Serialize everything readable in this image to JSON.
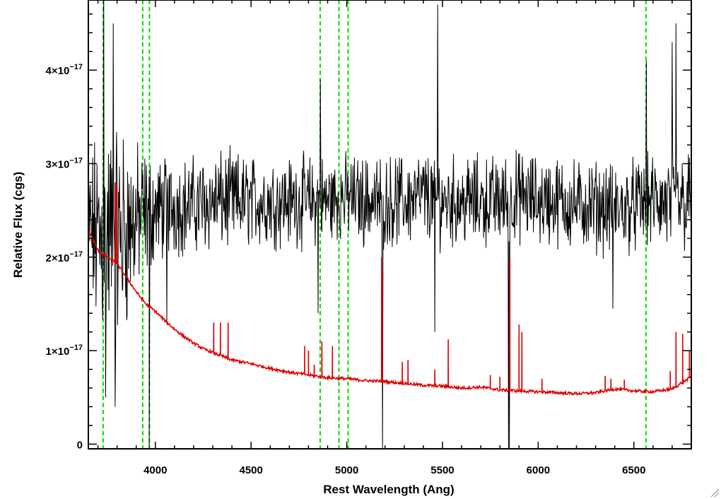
{
  "chart_data": {
    "type": "line",
    "xlabel": "Rest Wavelength (Ang)",
    "ylabel": "Relative Flux (cgs)",
    "xlim": [
      3650,
      6800
    ],
    "ylim": [
      -0.05,
      4.75
    ],
    "y_scale_label": "×10⁻¹⁷",
    "x_ticks": [
      {
        "value": 4000,
        "label": "4000"
      },
      {
        "value": 4500,
        "label": "4500"
      },
      {
        "value": 5000,
        "label": "5000"
      },
      {
        "value": 5500,
        "label": "5500"
      },
      {
        "value": 6000,
        "label": "6000"
      },
      {
        "value": 6500,
        "label": "6500"
      }
    ],
    "y_ticks": [
      {
        "value": 0,
        "label": "0"
      },
      {
        "value": 1,
        "label": "1×10⁻¹⁷"
      },
      {
        "value": 2,
        "label": "2×10⁻¹⁷"
      },
      {
        "value": 3,
        "label": "3×10⁻¹⁷"
      },
      {
        "value": 4,
        "label": "4×10⁻¹⁷"
      }
    ],
    "colors": {
      "spectrum": "#000000",
      "model": "#e00000",
      "lines": "#00dd00"
    },
    "series": [
      {
        "style": "noisy-spectrum",
        "color": "#000000",
        "x": [
          3650,
          3700,
          3750,
          3800,
          3850,
          3900,
          3950,
          4000,
          4100,
          4200,
          4300,
          4400,
          4500,
          4600,
          4700,
          4800,
          4900,
          5000,
          5100,
          5200,
          5300,
          5400,
          5500,
          5600,
          5700,
          5800,
          5900,
          6000,
          6100,
          6200,
          6300,
          6400,
          6500,
          6600,
          6700,
          6800
        ],
        "y": [
          2.3,
          2.2,
          2.2,
          2.2,
          2.3,
          2.4,
          2.45,
          2.5,
          2.55,
          2.55,
          2.6,
          2.6,
          2.6,
          2.6,
          2.6,
          2.6,
          2.6,
          2.65,
          2.6,
          2.6,
          2.6,
          2.65,
          2.6,
          2.6,
          2.6,
          2.6,
          2.65,
          2.6,
          2.6,
          2.55,
          2.55,
          2.5,
          2.55,
          2.6,
          2.55,
          2.6
        ],
        "amp": [
          0.9,
          1.5,
          1.6,
          1.6,
          1.3,
          1.0,
          0.9,
          0.7,
          0.65,
          0.65,
          0.65,
          0.65,
          0.6,
          0.6,
          0.6,
          0.6,
          0.6,
          0.55,
          0.6,
          0.6,
          0.6,
          0.6,
          0.6,
          0.6,
          0.6,
          0.6,
          0.6,
          0.6,
          0.6,
          0.6,
          0.6,
          0.6,
          0.6,
          0.6,
          0.7,
          0.7
        ],
        "spikes": [
          {
            "x": 3730,
            "y": 5.0
          },
          {
            "x": 3740,
            "y": 0.5
          },
          {
            "x": 3780,
            "y": 4.5
          },
          {
            "x": 3790,
            "y": 0.4
          },
          {
            "x": 3968,
            "y": -0.05
          },
          {
            "x": 4060,
            "y": 1.3
          },
          {
            "x": 4850,
            "y": 1.4
          },
          {
            "x": 4862,
            "y": 3.9
          },
          {
            "x": 5184,
            "y": 1.9
          },
          {
            "x": 5187,
            "y": -0.05
          },
          {
            "x": 5460,
            "y": 1.2
          },
          {
            "x": 5475,
            "y": 4.7
          },
          {
            "x": 5845,
            "y": -0.05
          },
          {
            "x": 5850,
            "y": -0.05
          },
          {
            "x": 6390,
            "y": 1.45
          },
          {
            "x": 6565,
            "y": 4.1
          },
          {
            "x": 6700,
            "y": 4.3
          },
          {
            "x": 6720,
            "y": 4.5
          }
        ]
      },
      {
        "style": "smooth-model",
        "color": "#e00000",
        "x": [
          3650,
          3700,
          3750,
          3800,
          3850,
          3900,
          3950,
          4000,
          4050,
          4100,
          4150,
          4200,
          4250,
          4300,
          4400,
          4500,
          4600,
          4700,
          4800,
          4900,
          5000,
          5100,
          5200,
          5300,
          5400,
          5500,
          5600,
          5700,
          5800,
          5900,
          6000,
          6100,
          6200,
          6300,
          6400,
          6500,
          6600,
          6700,
          6800
        ],
        "y": [
          2.3,
          2.07,
          2.0,
          1.93,
          1.78,
          1.63,
          1.5,
          1.42,
          1.32,
          1.23,
          1.15,
          1.08,
          1.02,
          0.98,
          0.9,
          0.86,
          0.81,
          0.77,
          0.74,
          0.71,
          0.7,
          0.68,
          0.67,
          0.65,
          0.63,
          0.62,
          0.6,
          0.61,
          0.58,
          0.57,
          0.56,
          0.55,
          0.54,
          0.55,
          0.59,
          0.57,
          0.56,
          0.59,
          0.72
        ],
        "lines": [
          {
            "x": 3790,
            "h": 2.8
          },
          {
            "x": 3800,
            "h": 2.75
          },
          {
            "x": 4305,
            "h": 1.3
          },
          {
            "x": 4340,
            "h": 1.3
          },
          {
            "x": 4380,
            "h": 1.3
          },
          {
            "x": 4780,
            "h": 1.05
          },
          {
            "x": 4800,
            "h": 1.0
          },
          {
            "x": 4830,
            "h": 0.85
          },
          {
            "x": 4870,
            "h": 1.1
          },
          {
            "x": 4925,
            "h": 1.05
          },
          {
            "x": 5182,
            "h": 2.0
          },
          {
            "x": 5185,
            "h": 1.85
          },
          {
            "x": 5290,
            "h": 0.88
          },
          {
            "x": 5320,
            "h": 0.9
          },
          {
            "x": 5460,
            "h": 0.8
          },
          {
            "x": 5530,
            "h": 1.12
          },
          {
            "x": 5750,
            "h": 0.74
          },
          {
            "x": 5800,
            "h": 0.72
          },
          {
            "x": 5852,
            "h": 1.98
          },
          {
            "x": 5900,
            "h": 1.28
          },
          {
            "x": 5915,
            "h": 1.2
          },
          {
            "x": 6020,
            "h": 0.7
          },
          {
            "x": 6350,
            "h": 0.73
          },
          {
            "x": 6380,
            "h": 0.7
          },
          {
            "x": 6450,
            "h": 0.69
          },
          {
            "x": 6690,
            "h": 0.78
          },
          {
            "x": 6720,
            "h": 1.2
          },
          {
            "x": 6755,
            "h": 1.18
          },
          {
            "x": 6790,
            "h": 1.0
          }
        ]
      }
    ],
    "reference_lines": [
      3727,
      3934,
      3969,
      4861,
      4959,
      5007,
      6563
    ]
  }
}
